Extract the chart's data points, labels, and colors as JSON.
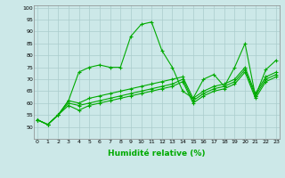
{
  "xlabel": "Humidité relative (%)",
  "background_color": "#cce8e8",
  "grid_color": "#aacccc",
  "line_color": "#00aa00",
  "marker_color": "#00aa00",
  "xlim": [
    0,
    23
  ],
  "ylim": [
    45,
    101
  ],
  "yticks": [
    50,
    55,
    60,
    65,
    70,
    75,
    80,
    85,
    90,
    95,
    100
  ],
  "xticks": [
    0,
    1,
    2,
    3,
    4,
    5,
    6,
    7,
    8,
    9,
    10,
    11,
    12,
    13,
    14,
    15,
    16,
    17,
    18,
    19,
    20,
    21,
    22,
    23
  ],
  "line1": [
    53,
    51,
    55,
    61,
    73,
    75,
    76,
    75,
    75,
    88,
    93,
    94,
    82,
    75,
    65,
    62,
    70,
    72,
    67,
    75,
    85,
    63,
    74,
    78
  ],
  "line2": [
    53,
    51,
    55,
    61,
    60,
    62,
    63,
    64,
    65,
    66,
    67,
    68,
    69,
    70,
    71,
    62,
    65,
    67,
    68,
    70,
    75,
    64,
    71,
    73
  ],
  "line3": [
    53,
    51,
    55,
    60,
    59,
    60,
    61,
    62,
    63,
    64,
    65,
    66,
    67,
    68,
    70,
    61,
    64,
    66,
    67,
    69,
    74,
    63,
    70,
    72
  ],
  "line4": [
    53,
    51,
    55,
    59,
    57,
    59,
    60,
    61,
    62,
    63,
    64,
    65,
    66,
    67,
    69,
    60,
    63,
    65,
    66,
    68,
    73,
    62,
    69,
    71
  ]
}
